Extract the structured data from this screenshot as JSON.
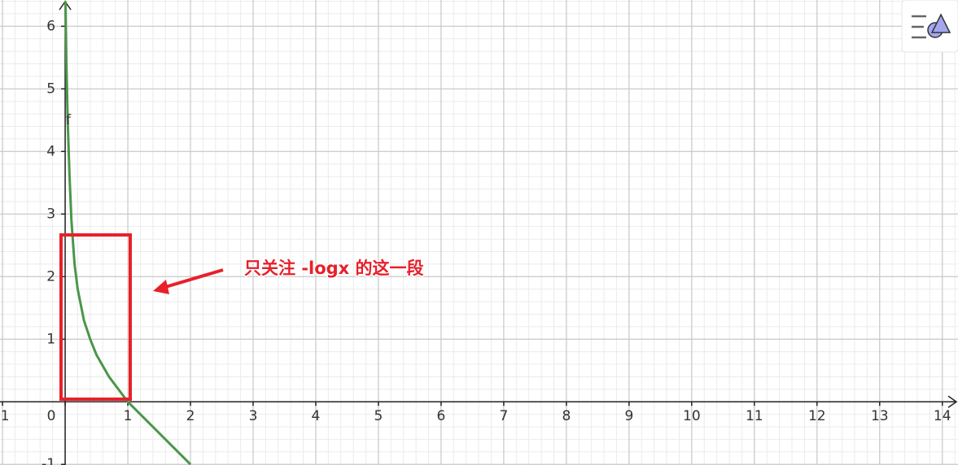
{
  "chart_data": {
    "type": "line",
    "function_label": "f",
    "annotation": "只关注 -logx 的这一段",
    "x": [
      0.005,
      0.02,
      0.04,
      0.07,
      0.1,
      0.15,
      0.2,
      0.3,
      0.4,
      0.5,
      0.7,
      1,
      1.3,
      1.6,
      2
    ],
    "series": [
      {
        "color": "#4a964a",
        "values": [
          6.4,
          5.4,
          4.5,
          3.6,
          2.9,
          2.2,
          1.8,
          1.3,
          1.0,
          0.75,
          0.4,
          0,
          -0.3,
          -0.6,
          -1.0
        ]
      }
    ],
    "xlim": [
      -1.04,
      14.25
    ],
    "ylim": [
      -1.01,
      6.42
    ],
    "xticks": [
      -1,
      0,
      1,
      2,
      3,
      4,
      5,
      6,
      7,
      8,
      9,
      10,
      11,
      12,
      13,
      14
    ],
    "yticks": [
      -1,
      1,
      2,
      3,
      4,
      5,
      6
    ],
    "grid": true,
    "minor_grid_subdivisions": 5
  }
}
